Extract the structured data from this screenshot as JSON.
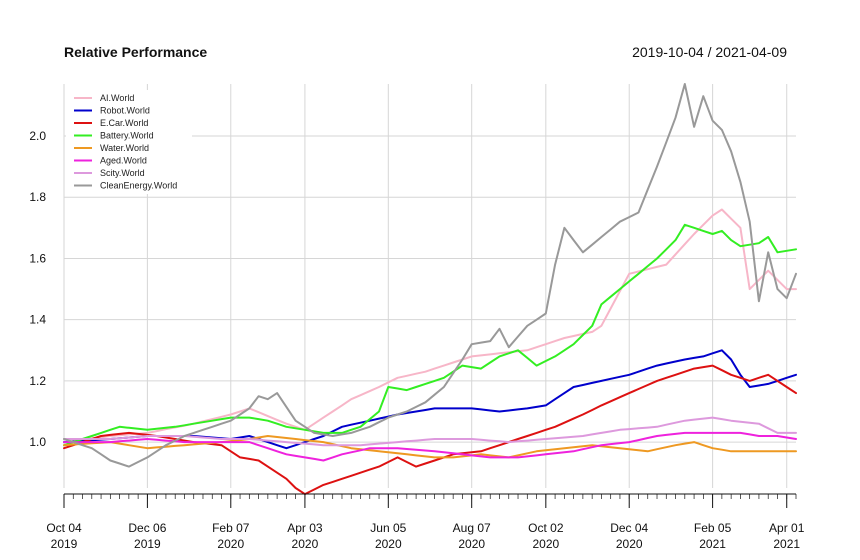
{
  "chart_data": {
    "type": "line",
    "title": "Relative Performance",
    "date_range": "2019-10-04 / 2021-04-09",
    "y_ticks": [
      1.0,
      1.2,
      1.4,
      1.6,
      1.8,
      2.0
    ],
    "y_tick_labels": [
      "1.0",
      "1.2",
      "1.4",
      "1.6",
      "1.8",
      "2.0"
    ],
    "ylim": [
      0.85,
      2.17
    ],
    "x_ticks": [
      {
        "idx": 0,
        "line1": "Oct 04",
        "line2": "2019"
      },
      {
        "idx": 9,
        "line1": "Dec 06",
        "line2": "2019"
      },
      {
        "idx": 18,
        "line1": "Feb 07",
        "line2": "2020"
      },
      {
        "idx": 26,
        "line1": "Apr 03",
        "line2": "2020"
      },
      {
        "idx": 35,
        "line1": "Jun 05",
        "line2": "2020"
      },
      {
        "idx": 44,
        "line1": "Aug 07",
        "line2": "2020"
      },
      {
        "idx": 52,
        "line1": "Oct 02",
        "line2": "2020"
      },
      {
        "idx": 61,
        "line1": "Dec 04",
        "line2": "2020"
      },
      {
        "idx": 70,
        "line1": "Feb 05",
        "line2": "2021"
      },
      {
        "idx": 78,
        "line1": "Apr 01",
        "line2": "2021"
      }
    ],
    "n_points": 80,
    "series": [
      {
        "name": "AI.World",
        "color": "#f7b6c8",
        "keys": [
          [
            0,
            1.0
          ],
          [
            5,
            1.02
          ],
          [
            9,
            1.03
          ],
          [
            14,
            1.06
          ],
          [
            18,
            1.09
          ],
          [
            20,
            1.11
          ],
          [
            24,
            1.06
          ],
          [
            26,
            1.04
          ],
          [
            29,
            1.1
          ],
          [
            31,
            1.14
          ],
          [
            34,
            1.18
          ],
          [
            36,
            1.21
          ],
          [
            39,
            1.23
          ],
          [
            42,
            1.26
          ],
          [
            44,
            1.28
          ],
          [
            47,
            1.29
          ],
          [
            50,
            1.3
          ],
          [
            52,
            1.32
          ],
          [
            54,
            1.34
          ],
          [
            57,
            1.36
          ],
          [
            58,
            1.38
          ],
          [
            61,
            1.55
          ],
          [
            65,
            1.58
          ],
          [
            68,
            1.68
          ],
          [
            70,
            1.74
          ],
          [
            71,
            1.76
          ],
          [
            72,
            1.73
          ],
          [
            73,
            1.7
          ],
          [
            74,
            1.5
          ],
          [
            76,
            1.56
          ],
          [
            78,
            1.5
          ],
          [
            79,
            1.5
          ]
        ]
      },
      {
        "name": "Robot.World",
        "color": "#0000cc",
        "keys": [
          [
            0,
            1.0
          ],
          [
            5,
            1.01
          ],
          [
            9,
            1.02
          ],
          [
            14,
            1.02
          ],
          [
            18,
            1.01
          ],
          [
            20,
            1.02
          ],
          [
            22,
            1.0
          ],
          [
            24,
            0.98
          ],
          [
            26,
            1.0
          ],
          [
            28,
            1.02
          ],
          [
            30,
            1.05
          ],
          [
            33,
            1.07
          ],
          [
            36,
            1.09
          ],
          [
            40,
            1.11
          ],
          [
            44,
            1.11
          ],
          [
            47,
            1.1
          ],
          [
            50,
            1.11
          ],
          [
            52,
            1.12
          ],
          [
            55,
            1.18
          ],
          [
            58,
            1.2
          ],
          [
            61,
            1.22
          ],
          [
            64,
            1.25
          ],
          [
            67,
            1.27
          ],
          [
            69,
            1.28
          ],
          [
            70,
            1.29
          ],
          [
            71,
            1.3
          ],
          [
            72,
            1.27
          ],
          [
            73,
            1.22
          ],
          [
            74,
            1.18
          ],
          [
            76,
            1.19
          ],
          [
            78,
            1.21
          ],
          [
            79,
            1.22
          ]
        ]
      },
      {
        "name": "E.Car.World",
        "color": "#dd1111",
        "keys": [
          [
            0,
            0.98
          ],
          [
            4,
            1.02
          ],
          [
            7,
            1.03
          ],
          [
            10,
            1.02
          ],
          [
            14,
            1.0
          ],
          [
            17,
            0.99
          ],
          [
            19,
            0.95
          ],
          [
            21,
            0.94
          ],
          [
            23,
            0.9
          ],
          [
            24,
            0.88
          ],
          [
            25,
            0.85
          ],
          [
            26,
            0.83
          ],
          [
            28,
            0.86
          ],
          [
            30,
            0.88
          ],
          [
            32,
            0.9
          ],
          [
            34,
            0.92
          ],
          [
            36,
            0.95
          ],
          [
            38,
            0.92
          ],
          [
            40,
            0.94
          ],
          [
            42,
            0.96
          ],
          [
            45,
            0.97
          ],
          [
            47,
            0.99
          ],
          [
            50,
            1.02
          ],
          [
            53,
            1.05
          ],
          [
            56,
            1.09
          ],
          [
            58,
            1.12
          ],
          [
            61,
            1.16
          ],
          [
            64,
            1.2
          ],
          [
            66,
            1.22
          ],
          [
            68,
            1.24
          ],
          [
            70,
            1.25
          ],
          [
            72,
            1.22
          ],
          [
            74,
            1.2
          ],
          [
            76,
            1.22
          ],
          [
            78,
            1.18
          ],
          [
            79,
            1.16
          ]
        ]
      },
      {
        "name": "Battery.World",
        "color": "#33ee22",
        "keys": [
          [
            0,
            0.99
          ],
          [
            3,
            1.02
          ],
          [
            6,
            1.05
          ],
          [
            9,
            1.04
          ],
          [
            12,
            1.05
          ],
          [
            14,
            1.06
          ],
          [
            16,
            1.07
          ],
          [
            18,
            1.08
          ],
          [
            20,
            1.08
          ],
          [
            22,
            1.07
          ],
          [
            24,
            1.05
          ],
          [
            26,
            1.04
          ],
          [
            28,
            1.03
          ],
          [
            30,
            1.03
          ],
          [
            32,
            1.05
          ],
          [
            34,
            1.1
          ],
          [
            35,
            1.18
          ],
          [
            37,
            1.17
          ],
          [
            39,
            1.19
          ],
          [
            41,
            1.21
          ],
          [
            43,
            1.25
          ],
          [
            45,
            1.24
          ],
          [
            47,
            1.28
          ],
          [
            49,
            1.3
          ],
          [
            51,
            1.25
          ],
          [
            53,
            1.28
          ],
          [
            55,
            1.32
          ],
          [
            57,
            1.38
          ],
          [
            58,
            1.45
          ],
          [
            60,
            1.5
          ],
          [
            62,
            1.55
          ],
          [
            64,
            1.6
          ],
          [
            66,
            1.66
          ],
          [
            67,
            1.71
          ],
          [
            69,
            1.69
          ],
          [
            70,
            1.68
          ],
          [
            71,
            1.69
          ],
          [
            72,
            1.66
          ],
          [
            73,
            1.64
          ],
          [
            75,
            1.65
          ],
          [
            76,
            1.67
          ],
          [
            77,
            1.62
          ],
          [
            79,
            1.63
          ]
        ]
      },
      {
        "name": "Water.World",
        "color": "#ee9922",
        "keys": [
          [
            0,
            0.99
          ],
          [
            5,
            1.0
          ],
          [
            9,
            0.98
          ],
          [
            13,
            0.99
          ],
          [
            17,
            1.0
          ],
          [
            20,
            1.01
          ],
          [
            22,
            1.02
          ],
          [
            25,
            1.01
          ],
          [
            28,
            1.0
          ],
          [
            31,
            0.98
          ],
          [
            34,
            0.97
          ],
          [
            37,
            0.96
          ],
          [
            40,
            0.95
          ],
          [
            42,
            0.95
          ],
          [
            45,
            0.96
          ],
          [
            48,
            0.95
          ],
          [
            51,
            0.97
          ],
          [
            54,
            0.98
          ],
          [
            57,
            0.99
          ],
          [
            60,
            0.98
          ],
          [
            63,
            0.97
          ],
          [
            66,
            0.99
          ],
          [
            68,
            1.0
          ],
          [
            70,
            0.98
          ],
          [
            72,
            0.97
          ],
          [
            75,
            0.97
          ],
          [
            79,
            0.97
          ]
        ]
      },
      {
        "name": "Aged.World",
        "color": "#ee22dd",
        "keys": [
          [
            0,
            1.0
          ],
          [
            5,
            1.0
          ],
          [
            9,
            1.01
          ],
          [
            13,
            1.0
          ],
          [
            17,
            1.0
          ],
          [
            20,
            1.0
          ],
          [
            22,
            0.98
          ],
          [
            24,
            0.96
          ],
          [
            26,
            0.95
          ],
          [
            28,
            0.94
          ],
          [
            30,
            0.96
          ],
          [
            33,
            0.98
          ],
          [
            36,
            0.98
          ],
          [
            40,
            0.97
          ],
          [
            43,
            0.96
          ],
          [
            46,
            0.95
          ],
          [
            49,
            0.95
          ],
          [
            52,
            0.96
          ],
          [
            55,
            0.97
          ],
          [
            58,
            0.99
          ],
          [
            61,
            1.0
          ],
          [
            64,
            1.02
          ],
          [
            67,
            1.03
          ],
          [
            70,
            1.03
          ],
          [
            73,
            1.03
          ],
          [
            75,
            1.02
          ],
          [
            77,
            1.02
          ],
          [
            79,
            1.01
          ]
        ]
      },
      {
        "name": "Scity.World",
        "color": "#dd99dd",
        "keys": [
          [
            0,
            1.01
          ],
          [
            5,
            1.01
          ],
          [
            9,
            1.02
          ],
          [
            13,
            1.02
          ],
          [
            17,
            1.01
          ],
          [
            20,
            1.01
          ],
          [
            24,
            1.0
          ],
          [
            28,
            0.99
          ],
          [
            32,
            0.99
          ],
          [
            36,
            1.0
          ],
          [
            40,
            1.01
          ],
          [
            44,
            1.01
          ],
          [
            48,
            1.0
          ],
          [
            52,
            1.01
          ],
          [
            56,
            1.02
          ],
          [
            60,
            1.04
          ],
          [
            64,
            1.05
          ],
          [
            67,
            1.07
          ],
          [
            70,
            1.08
          ],
          [
            72,
            1.07
          ],
          [
            75,
            1.06
          ],
          [
            77,
            1.03
          ],
          [
            79,
            1.03
          ]
        ]
      },
      {
        "name": "CleanEnergy.World",
        "color": "#999999",
        "keys": [
          [
            0,
            1.01
          ],
          [
            3,
            0.98
          ],
          [
            5,
            0.94
          ],
          [
            7,
            0.92
          ],
          [
            9,
            0.95
          ],
          [
            11,
            0.99
          ],
          [
            13,
            1.02
          ],
          [
            15,
            1.04
          ],
          [
            17,
            1.06
          ],
          [
            18,
            1.07
          ],
          [
            20,
            1.11
          ],
          [
            21,
            1.15
          ],
          [
            22,
            1.14
          ],
          [
            23,
            1.16
          ],
          [
            25,
            1.07
          ],
          [
            27,
            1.03
          ],
          [
            29,
            1.02
          ],
          [
            31,
            1.03
          ],
          [
            33,
            1.05
          ],
          [
            35,
            1.08
          ],
          [
            37,
            1.1
          ],
          [
            39,
            1.13
          ],
          [
            41,
            1.18
          ],
          [
            43,
            1.27
          ],
          [
            44,
            1.32
          ],
          [
            46,
            1.33
          ],
          [
            47,
            1.37
          ],
          [
            48,
            1.31
          ],
          [
            50,
            1.38
          ],
          [
            52,
            1.42
          ],
          [
            53,
            1.58
          ],
          [
            54,
            1.7
          ],
          [
            56,
            1.62
          ],
          [
            58,
            1.67
          ],
          [
            60,
            1.72
          ],
          [
            62,
            1.75
          ],
          [
            64,
            1.9
          ],
          [
            66,
            2.06
          ],
          [
            67,
            2.17
          ],
          [
            68,
            2.03
          ],
          [
            69,
            2.13
          ],
          [
            70,
            2.05
          ],
          [
            71,
            2.02
          ],
          [
            72,
            1.95
          ],
          [
            73,
            1.85
          ],
          [
            74,
            1.72
          ],
          [
            75,
            1.46
          ],
          [
            76,
            1.62
          ],
          [
            77,
            1.5
          ],
          [
            78,
            1.47
          ],
          [
            79,
            1.55
          ]
        ]
      }
    ]
  }
}
